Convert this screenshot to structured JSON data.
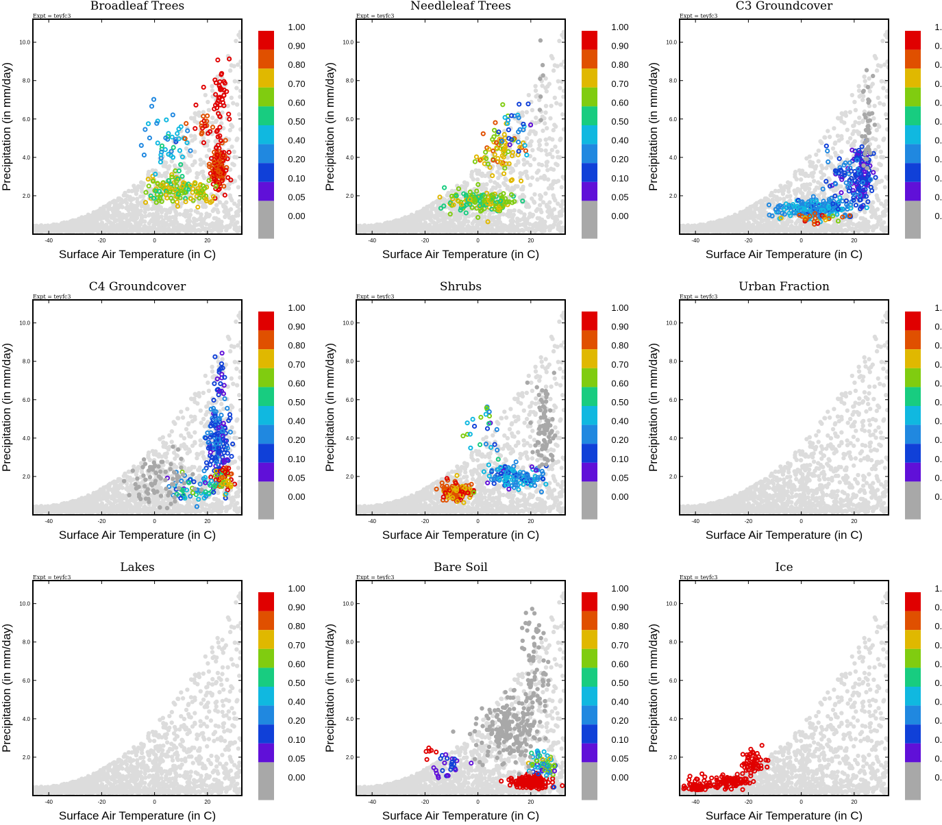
{
  "figure": {
    "experiment_label": "Expt = teyfc3",
    "xlabel": "Surface Air Temperature (in C)",
    "ylabel": "Precipitation (in mm/day)",
    "x_ticks": [
      "-40",
      "-20",
      "0",
      "20"
    ],
    "y_ticks": [
      "2.0",
      "4.0",
      "6.0",
      "8.0",
      "10.0"
    ],
    "colorbar": {
      "labels": [
        "1.00",
        "0.90",
        "0.80",
        "0.70",
        "0.60",
        "0.50",
        "0.40",
        "0.20",
        "0.10",
        "0.05",
        "0.00"
      ],
      "colors": [
        "#e00000",
        "#e05000",
        "#e0b800",
        "#80cc10",
        "#18cc80",
        "#10b8e0",
        "#2088e0",
        "#1040d8",
        "#6010d8",
        "#a8a8a8",
        "#a8a8a8"
      ]
    },
    "background_point_color": "#dcdcdc",
    "zero_point_color": "#a8a8a8"
  },
  "chart_data": [
    {
      "type": "scatter",
      "title": "Broadleaf Trees",
      "xlabel": "Surface Air Temperature (in C)",
      "ylabel": "Precipitation (in mm/day)",
      "xlim": [
        -46,
        33
      ],
      "ylim": [
        0,
        11.2
      ],
      "clusters": [
        {
          "x": 24,
          "y": 3.5,
          "sx": 3,
          "sy": 1.0,
          "n": 120,
          "cmin": 0.8,
          "cmax": 0.9
        },
        {
          "x": 25,
          "y": 6.8,
          "sx": 2,
          "sy": 1.6,
          "n": 40,
          "cmin": 0.9,
          "cmax": 1.0
        },
        {
          "x": 6,
          "y": 2.3,
          "sx": 8,
          "sy": 0.6,
          "n": 90,
          "cmin": 0.5,
          "cmax": 0.7
        },
        {
          "x": 5,
          "y": 4.8,
          "sx": 8,
          "sy": 1.5,
          "n": 45,
          "cmin": 0.1,
          "cmax": 0.5
        },
        {
          "x": 18,
          "y": 5.8,
          "sx": 5,
          "sy": 1.2,
          "n": 20,
          "cmin": 0.8,
          "cmax": 0.9
        },
        {
          "x": 17,
          "y": 2.2,
          "sx": 6,
          "sy": 0.5,
          "n": 40,
          "cmin": 0.6,
          "cmax": 0.7
        }
      ]
    },
    {
      "type": "scatter",
      "title": "Needleleaf Trees",
      "xlabel": "Surface Air Temperature (in C)",
      "ylabel": "Precipitation (in mm/day)",
      "xlim": [
        -46,
        33
      ],
      "ylim": [
        0,
        11.2
      ],
      "clusters": [
        {
          "x": 2,
          "y": 1.7,
          "sx": 10,
          "sy": 0.5,
          "n": 150,
          "cmin": 0.5,
          "cmax": 0.7
        },
        {
          "x": 8,
          "y": 4.3,
          "sx": 6,
          "sy": 1.3,
          "n": 70,
          "cmin": 0.6,
          "cmax": 0.8
        },
        {
          "x": 14,
          "y": 5.5,
          "sx": 5,
          "sy": 1.2,
          "n": 25,
          "cmin": 0.05,
          "cmax": 0.4
        },
        {
          "x": 24,
          "y": 8.0,
          "sx": 1,
          "sy": 2.5,
          "n": 8,
          "cmin": 0.0,
          "cmax": 0.02
        }
      ]
    },
    {
      "type": "scatter",
      "title": "C3 Groundcover",
      "xlabel": "Surface Air Temperature (in C)",
      "ylabel": "Precipitation (in mm/day)",
      "xlim": [
        -46,
        33
      ],
      "ylim": [
        0,
        11.2
      ],
      "clusters": [
        {
          "x": 5,
          "y": 1.3,
          "sx": 12,
          "sy": 0.4,
          "n": 200,
          "cmin": 0.1,
          "cmax": 0.4
        },
        {
          "x": 23,
          "y": 3.3,
          "sx": 3,
          "sy": 1.2,
          "n": 120,
          "cmin": 0.05,
          "cmax": 0.1
        },
        {
          "x": 15,
          "y": 3.0,
          "sx": 8,
          "sy": 1.2,
          "n": 60,
          "cmin": 0.05,
          "cmax": 0.2
        },
        {
          "x": 6,
          "y": 0.8,
          "sx": 10,
          "sy": 0.2,
          "n": 25,
          "cmin": 0.6,
          "cmax": 0.9
        },
        {
          "x": 25,
          "y": 5.5,
          "sx": 2,
          "sy": 2,
          "n": 40,
          "cmin": 0.0,
          "cmax": 0.02
        }
      ]
    },
    {
      "type": "scatter",
      "title": "C4 Groundcover",
      "xlabel": "Surface Air Temperature (in C)",
      "ylabel": "Precipitation (in mm/day)",
      "xlim": [
        -46,
        33
      ],
      "ylim": [
        0,
        11.2
      ],
      "clusters": [
        {
          "x": 24,
          "y": 3.8,
          "sx": 4,
          "sy": 1.6,
          "n": 150,
          "cmin": 0.05,
          "cmax": 0.2
        },
        {
          "x": 26,
          "y": 1.8,
          "sx": 3,
          "sy": 0.6,
          "n": 60,
          "cmin": 0.5,
          "cmax": 1.0
        },
        {
          "x": 14,
          "y": 1.3,
          "sx": 8,
          "sy": 0.6,
          "n": 60,
          "cmin": 0.05,
          "cmax": 0.6
        },
        {
          "x": 25,
          "y": 7.0,
          "sx": 1.5,
          "sy": 1.2,
          "n": 20,
          "cmin": 0.05,
          "cmax": 0.1
        },
        {
          "x": 2,
          "y": 1.8,
          "sx": 10,
          "sy": 1.0,
          "n": 80,
          "cmin": 0.0,
          "cmax": 0.02
        }
      ]
    },
    {
      "type": "scatter",
      "title": "Shrubs",
      "xlabel": "Surface Air Temperature (in C)",
      "ylabel": "Precipitation (in mm/day)",
      "xlim": [
        -46,
        33
      ],
      "ylim": [
        0,
        11.2
      ],
      "clusters": [
        {
          "x": -8,
          "y": 1.2,
          "sx": 5,
          "sy": 0.4,
          "n": 120,
          "cmin": 0.7,
          "cmax": 0.9
        },
        {
          "x": 14,
          "y": 2.0,
          "sx": 9,
          "sy": 0.6,
          "n": 120,
          "cmin": 0.05,
          "cmax": 0.4
        },
        {
          "x": 2,
          "y": 4.0,
          "sx": 6,
          "sy": 1.3,
          "n": 25,
          "cmin": 0.05,
          "cmax": 0.6
        },
        {
          "x": 25,
          "y": 4.5,
          "sx": 3,
          "sy": 2.0,
          "n": 80,
          "cmin": 0.0,
          "cmax": 0.02
        }
      ]
    },
    {
      "type": "scatter",
      "title": "Urban Fraction",
      "xlabel": "Surface Air Temperature (in C)",
      "ylabel": "Precipitation (in mm/day)",
      "xlim": [
        -46,
        33
      ],
      "ylim": [
        0,
        11.2
      ],
      "clusters": []
    },
    {
      "type": "scatter",
      "title": "Lakes",
      "xlabel": "Surface Air Temperature (in C)",
      "ylabel": "Precipitation (in mm/day)",
      "xlim": [
        -46,
        33
      ],
      "ylim": [
        0,
        11.2
      ],
      "clusters": []
    },
    {
      "type": "scatter",
      "title": "Bare Soil",
      "xlabel": "Surface Air Temperature (in C)",
      "ylabel": "Precipitation (in mm/day)",
      "xlim": [
        -46,
        33
      ],
      "ylim": [
        0,
        11.2
      ],
      "clusters": [
        {
          "x": 20,
          "y": 0.7,
          "sx": 7,
          "sy": 0.3,
          "n": 140,
          "cmin": 0.9,
          "cmax": 1.0
        },
        {
          "x": 25,
          "y": 1.6,
          "sx": 4,
          "sy": 0.5,
          "n": 60,
          "cmin": 0.05,
          "cmax": 0.7
        },
        {
          "x": -12,
          "y": 1.5,
          "sx": 5,
          "sy": 0.6,
          "n": 25,
          "cmin": 0.05,
          "cmax": 0.1
        },
        {
          "x": -20,
          "y": 2.4,
          "sx": 3,
          "sy": 0.6,
          "n": 6,
          "cmin": 0.9,
          "cmax": 1.0
        },
        {
          "x": 12,
          "y": 3.5,
          "sx": 10,
          "sy": 1.5,
          "n": 200,
          "cmin": 0.0,
          "cmax": 0.02
        },
        {
          "x": 22,
          "y": 7.0,
          "sx": 5,
          "sy": 2.0,
          "n": 60,
          "cmin": 0.0,
          "cmax": 0.02
        }
      ]
    },
    {
      "type": "scatter",
      "title": "Ice",
      "xlabel": "Surface Air Temperature (in C)",
      "ylabel": "Precipitation (in mm/day)",
      "xlim": [
        -46,
        33
      ],
      "ylim": [
        0,
        11.2
      ],
      "clusters": [
        {
          "x": -30,
          "y": 0.7,
          "sx": 9,
          "sy": 0.3,
          "n": 100,
          "cmin": 0.9,
          "cmax": 1.0
        },
        {
          "x": -19,
          "y": 1.7,
          "sx": 4,
          "sy": 0.6,
          "n": 60,
          "cmin": 0.9,
          "cmax": 1.0
        },
        {
          "x": -40,
          "y": 0.25,
          "sx": 4,
          "sy": 0.1,
          "n": 40,
          "cmin": 0.9,
          "cmax": 1.0
        }
      ]
    }
  ]
}
